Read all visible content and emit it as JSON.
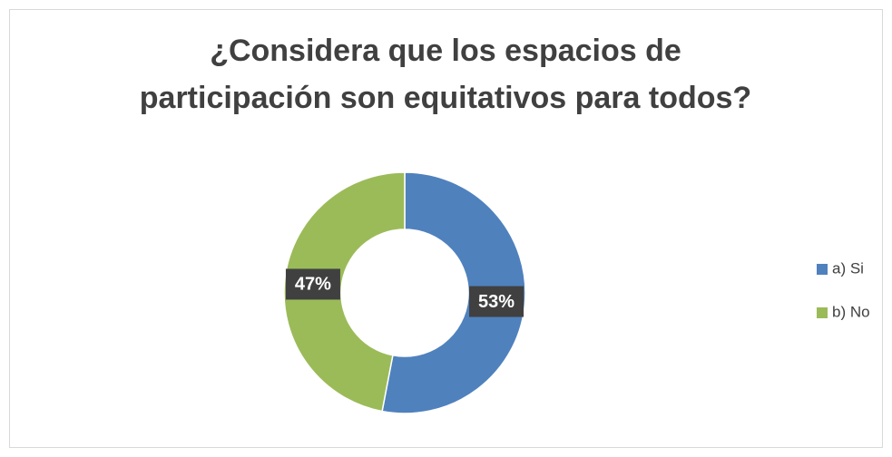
{
  "chart_data": {
    "type": "donut",
    "title": [
      "¿Considera que los espacios de",
      "participación son equitativos para todos?"
    ],
    "categories": [
      "a) Si",
      "b) No"
    ],
    "values": [
      53,
      47
    ],
    "value_labels": [
      "53%",
      "47%"
    ],
    "colors": [
      "#4f81bd",
      "#9bbb59"
    ],
    "legend": "right"
  }
}
